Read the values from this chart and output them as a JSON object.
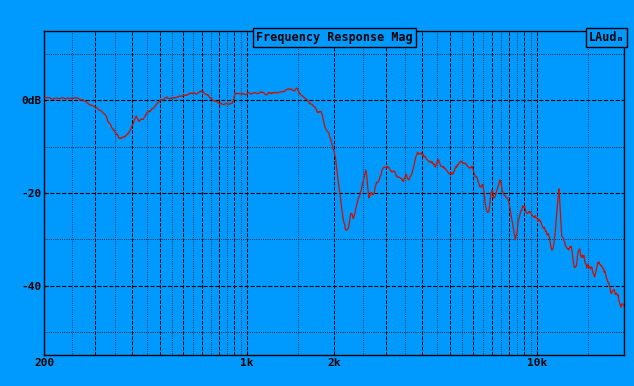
{
  "title": "Frequency Response Mag",
  "label_top_right": "LAudₘ",
  "bg_color": "#009AFF",
  "line_color": "#CC1100",
  "grid_dash_color": "#000080",
  "grid_dot_color": "#000080",
  "freq_min": 200,
  "freq_max": 20000,
  "ymin": -55,
  "ymax": 15,
  "yticks": [
    0,
    -20,
    -40
  ],
  "ytick_labels": [
    "0dB",
    "-20",
    "-40"
  ],
  "xtick_locs": [
    200,
    1000,
    2000,
    10000
  ],
  "xtick_labels": [
    "200",
    "1k",
    "2k",
    "10k"
  ],
  "figwidth": 6.34,
  "figheight": 3.86,
  "dpi": 100
}
